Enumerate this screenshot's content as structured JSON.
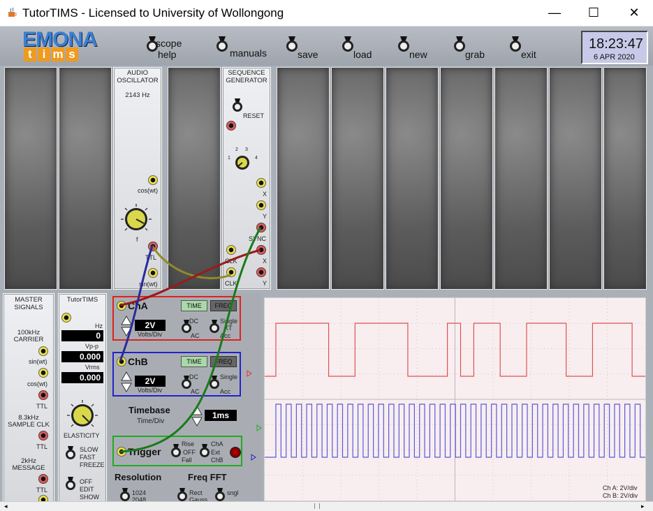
{
  "window": {
    "title": "TutorTIMS - Licensed to University of Wollongong",
    "minimize": "—",
    "maximize": "☐",
    "close": "✕"
  },
  "logo": {
    "top": "EMONA",
    "bottom": [
      "t",
      "i",
      "m",
      "s"
    ]
  },
  "toolbar": {
    "scope_help_line1": "scope",
    "scope_help_line2": "help",
    "manuals": "manuals",
    "save": "save",
    "load": "load",
    "new": "new",
    "grab": "grab",
    "exit": "exit"
  },
  "clock": {
    "time": "18:23:47",
    "date": "6 APR 2020"
  },
  "audio_oscillator": {
    "title_line1": "AUDIO",
    "title_line2": "OSCILLATOR",
    "freq": "2143 Hz",
    "cos": "cos(wt)",
    "f": "f",
    "ttl": "TTL",
    "sin": "sin(wt)"
  },
  "sequence_generator": {
    "title_line1": "SEQUENCE",
    "title_line2": "GENERATOR",
    "reset": "RESET",
    "dial": [
      "1",
      "2",
      "3",
      "4"
    ],
    "x": "X",
    "y": "Y",
    "y2": "Y",
    "sync": "SYNC",
    "clk": "CLK",
    "clk2": "CLK",
    "x2": "X",
    "y3": "Y"
  },
  "master_signals": {
    "title_line1": "MASTER",
    "title_line2": "SIGNALS",
    "carrier_line1": "100kHz",
    "carrier_line2": "CARRIER",
    "sin": "sin(wt)",
    "cos": "cos(wt)",
    "ttl1": "TTL",
    "sample_line1": "8.3kHz",
    "sample_line2": "SAMPLE CLK",
    "ttl2": "TTL",
    "message_line1": "2kHz",
    "message_line2": "MESSAGE",
    "ttl3": "TTL"
  },
  "tutortims": {
    "title": "TutorTIMS",
    "hz_label": "Hz",
    "hz_value": "0",
    "vpp_label": "Vp-p",
    "vpp_value": "0.000",
    "vrms_label": "Vrms",
    "vrms_value": "0.000",
    "elasticity": "ELASTICITY",
    "slow": "SLOW",
    "fast": "FAST",
    "freeze": "FREEZE",
    "off": "OFF",
    "edit": "EDIT",
    "show": "SHOW"
  },
  "chA": {
    "label": "ChA",
    "time": "TIME",
    "freq": "FREQ",
    "volts": "2V",
    "volts_div": "Volts/Div",
    "dc": "DC",
    "ac": "AC",
    "single": "Single",
    "xt": "XT",
    "acc": "Acc"
  },
  "chB": {
    "label": "ChB",
    "time": "TIME",
    "freq": "FREQ",
    "volts": "2V",
    "volts_div": "Volts/Div",
    "dc": "DC",
    "ac": "AC",
    "single": "Single",
    "acc": "Acc"
  },
  "timebase": {
    "label": "Timebase",
    "sub": "Time/Div",
    "value": "1ms"
  },
  "trigger": {
    "label": "Trigger",
    "rise": "Rise",
    "off": "OFF",
    "fall": "Fall",
    "cha": "ChA",
    "ext": "Ext",
    "chb": "ChB"
  },
  "resolution": {
    "label": "Resolution",
    "v1": "1024",
    "v2": "2048"
  },
  "fft": {
    "label": "Freq FFT",
    "rect": "Rect",
    "gauss": "Gauss",
    "sngl": "sngl"
  },
  "scope": {
    "cha_scale": "Ch A: 2V/div",
    "chb_scale": "Ch B: 2V/div"
  },
  "colors": {
    "chA": "#e05050",
    "chB": "#5a5ad6",
    "trace_bg": "#f8eef0"
  },
  "waveforms": {
    "chA_levels_1_high_0_low": [
      1,
      1,
      1,
      1,
      0,
      0,
      1,
      1,
      1,
      1,
      0,
      0,
      0,
      1,
      0,
      1,
      1,
      0,
      0,
      1,
      1,
      1,
      0,
      0,
      1,
      1,
      1,
      0
    ],
    "chB_cycles": 36
  }
}
